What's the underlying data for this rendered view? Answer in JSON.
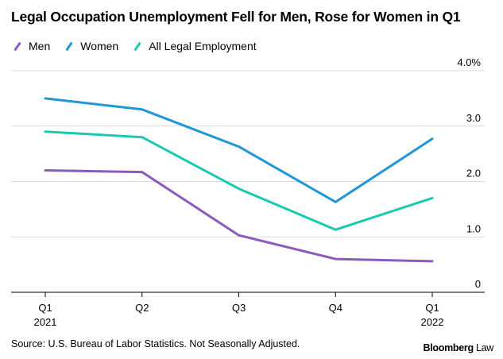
{
  "chart_data": {
    "type": "line",
    "title": "Legal Occupation Unemployment Fell for Men, Rose for Women in Q1",
    "categories": [
      [
        "Q1",
        "2021"
      ],
      [
        "Q2",
        ""
      ],
      [
        "Q3",
        ""
      ],
      [
        "Q4",
        ""
      ],
      [
        "Q1",
        "2022"
      ]
    ],
    "series": [
      {
        "name": "Men",
        "color": "#8a5bbd",
        "values": [
          2.2,
          2.17,
          1.03,
          0.6,
          0.56
        ]
      },
      {
        "name": "Women",
        "color": "#1f97d8",
        "values": [
          3.5,
          3.3,
          2.63,
          1.63,
          2.77
        ]
      },
      {
        "name": "All Legal Employment",
        "color": "#19c9b0",
        "values": [
          2.9,
          2.8,
          1.87,
          1.13,
          1.7
        ]
      }
    ],
    "y_ticks": [
      {
        "value": 0,
        "label": "0"
      },
      {
        "value": 1,
        "label": "1.0"
      },
      {
        "value": 2,
        "label": "2.0"
      },
      {
        "value": 3,
        "label": "3.0"
      },
      {
        "value": 4,
        "label": "4.0%"
      }
    ],
    "ylim": [
      0,
      4
    ],
    "grid": true,
    "y_axis_side": "right",
    "legend_position": "top-left"
  },
  "footer": {
    "source": "Source: U.S. Bureau of Labor Statistics. Not Seasonally Adjusted.",
    "brand_bold": "Bloomberg",
    "brand_light": "Law"
  }
}
